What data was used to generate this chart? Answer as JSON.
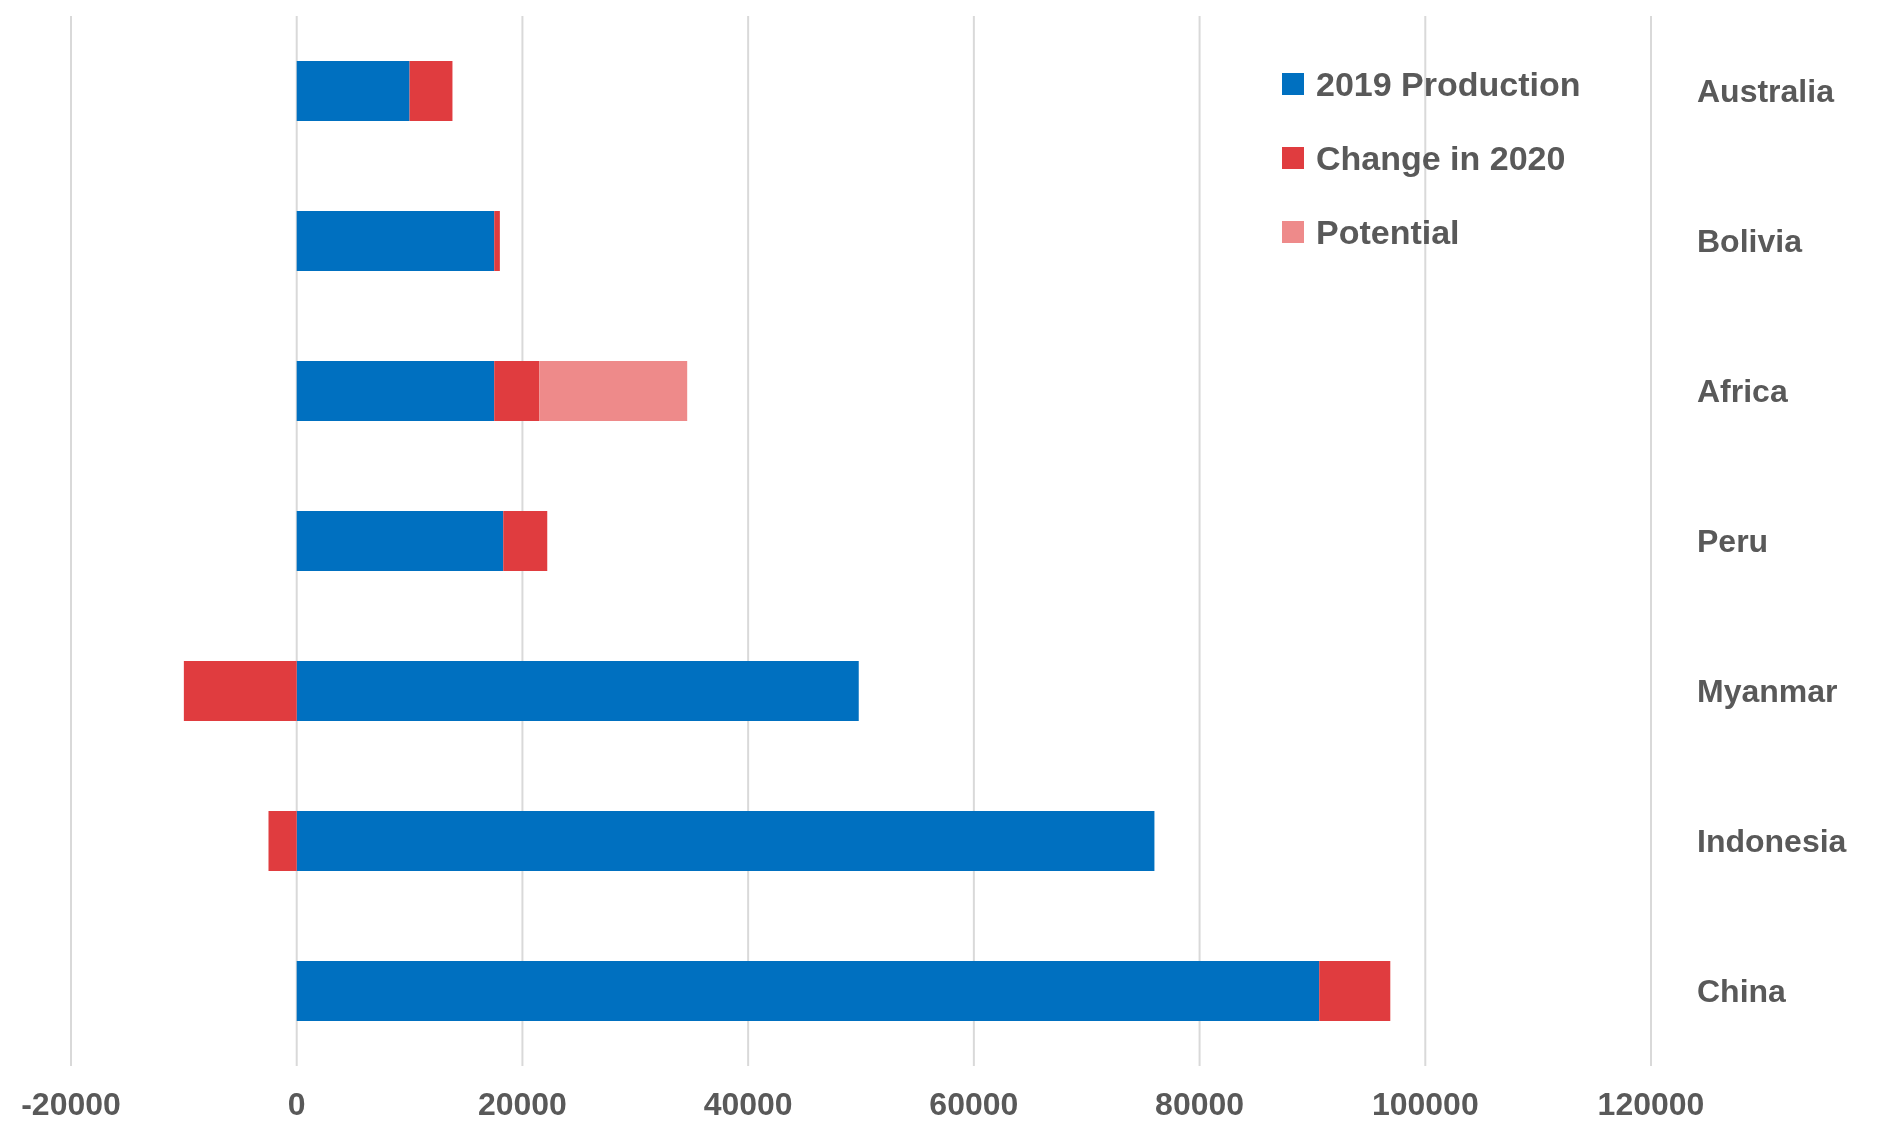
{
  "chart_data": {
    "type": "bar",
    "orientation": "horizontal",
    "stacked": true,
    "categories": [
      "Australia",
      "Bolivia",
      "Africa",
      "Peru",
      "Myanmar",
      "Indonesia",
      "China"
    ],
    "series": [
      {
        "name": "2019 Production",
        "color": "#0070c0",
        "values": [
          10000,
          17500,
          17500,
          18300,
          49800,
          76000,
          90600
        ]
      },
      {
        "name": "Change in 2020",
        "color": "#e03c3f",
        "values": [
          3800,
          500,
          4000,
          3900,
          -10000,
          -2500,
          6300
        ]
      },
      {
        "name": "Potential",
        "color": "#ee8a8a",
        "values": [
          null,
          null,
          13100,
          null,
          null,
          null,
          null
        ]
      }
    ],
    "xlim": [
      -20000,
      120000
    ],
    "xticks": [
      -20000,
      0,
      20000,
      40000,
      60000,
      80000,
      100000,
      120000
    ],
    "grid": "x",
    "legend": "top right"
  }
}
